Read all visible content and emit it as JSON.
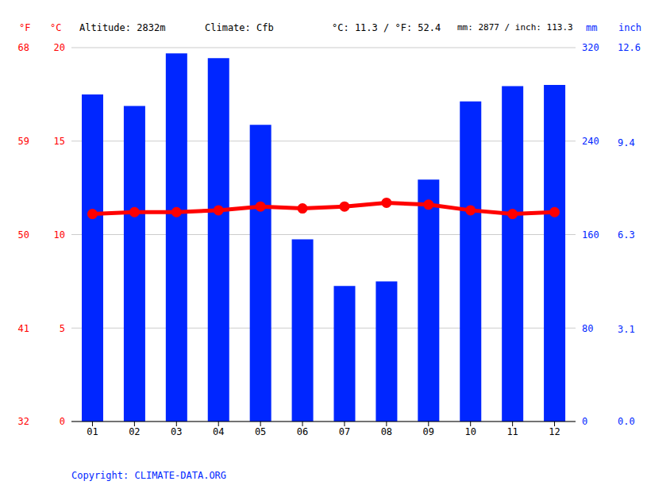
{
  "chart_data": {
    "type": "bar",
    "categories": [
      "01",
      "02",
      "03",
      "04",
      "05",
      "06",
      "07",
      "08",
      "09",
      "10",
      "11",
      "12"
    ],
    "series": [
      {
        "type": "bar",
        "color": "#0026ff",
        "axis": "y2",
        "values": [
          280,
          270,
          315,
          311,
          254,
          156,
          116,
          120,
          207,
          274,
          287,
          288
        ]
      },
      {
        "type": "line",
        "color": "#ff0000",
        "marker": "circle",
        "axis": "y",
        "values": [
          11.1,
          11.2,
          11.2,
          11.3,
          11.5,
          11.4,
          11.5,
          11.7,
          11.6,
          11.3,
          11.1,
          11.2
        ]
      }
    ],
    "ylabel": "°C",
    "ylim": [
      0,
      20
    ],
    "yticks": [
      0,
      5,
      10,
      15,
      20
    ],
    "y2label": "mm",
    "y2lim": [
      0,
      320
    ],
    "y2ticks": [
      0,
      80,
      160,
      240,
      320
    ],
    "y3label": "°F",
    "y3lim": [
      32,
      68
    ],
    "y3ticks": [
      32,
      41,
      50,
      59,
      68
    ],
    "y4label": "inch",
    "y4lim": [
      0,
      12.6
    ],
    "y4ticks": [
      {
        "value": 0,
        "label": "0.0"
      },
      3.1,
      6.3,
      9.4,
      12.6
    ],
    "annotations": [
      "Altitude: 2832m",
      "Climate: Cfb",
      "°C: 11.3 / °F: 52.4",
      "mm: 2877 / inch: 113.3",
      "Copyright: CLIMATE-DATA.ORG"
    ],
    "grid": true
  }
}
